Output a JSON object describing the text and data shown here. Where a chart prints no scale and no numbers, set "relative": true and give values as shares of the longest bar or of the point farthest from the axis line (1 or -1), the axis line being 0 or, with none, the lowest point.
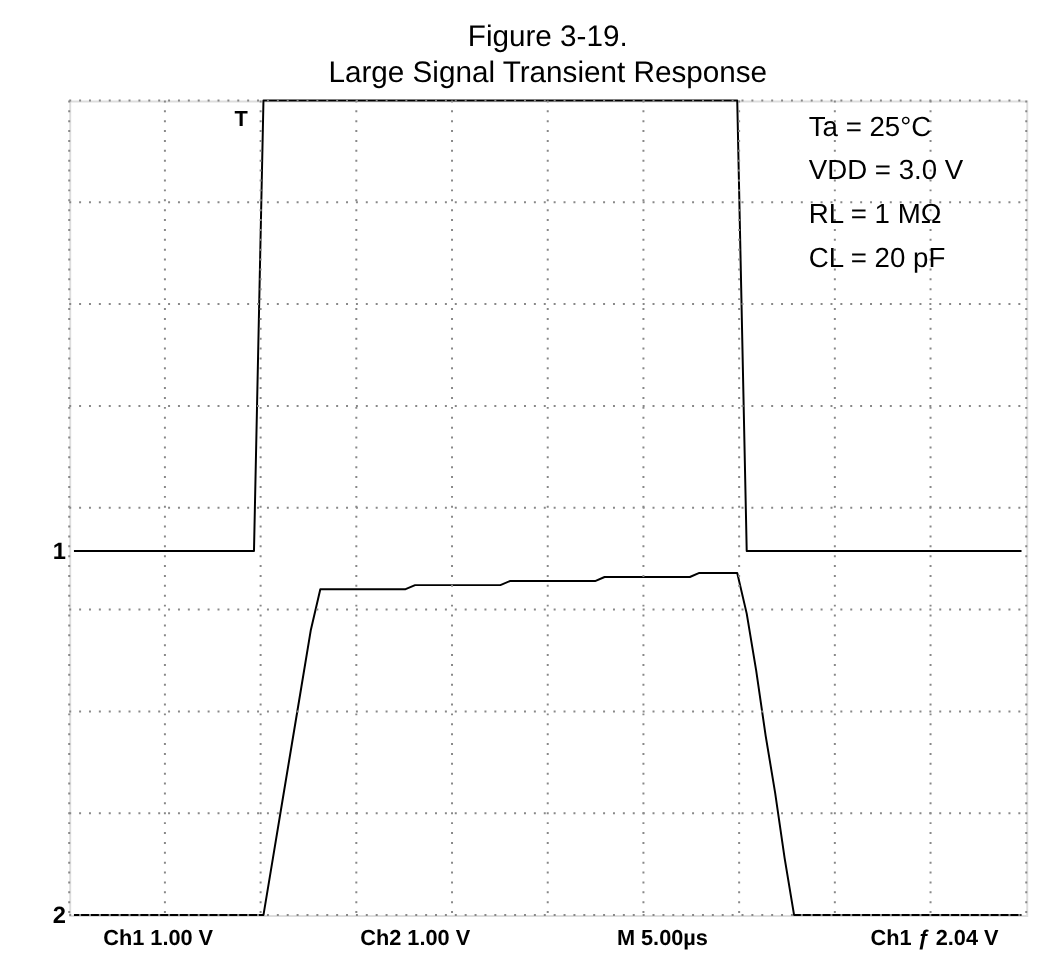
{
  "chart_data": {
    "type": "line",
    "title": "Figure 3-19.",
    "subtitle": "Large Signal Transient Response",
    "relative": true,
    "grid": true,
    "marker": "none",
    "line_style": "solid",
    "categories": [
      null,
      null,
      null,
      null,
      null,
      null,
      null,
      null,
      null,
      null,
      null,
      null,
      null,
      null,
      null,
      null,
      null,
      null,
      null,
      null,
      null,
      null,
      null,
      null,
      null,
      null,
      null,
      null,
      null,
      null,
      null,
      null,
      null,
      null,
      null,
      null,
      null,
      null,
      null,
      null,
      null,
      null,
      null,
      null,
      null,
      null,
      null,
      null,
      null,
      null,
      null,
      null,
      null,
      null,
      null,
      null,
      null,
      null,
      null,
      null,
      null,
      null,
      null,
      null,
      null,
      null,
      null,
      null,
      null,
      null,
      null,
      null,
      null,
      null,
      null,
      null,
      null,
      null,
      null,
      null,
      null,
      null,
      null,
      null,
      null,
      null,
      null,
      null,
      null,
      null,
      null,
      null,
      null,
      null,
      null,
      null,
      null,
      null,
      null,
      null,
      null
    ],
    "series": [
      {
        "name": "1",
        "color": "#000000",
        "values": [
          0.447,
          0.447,
          0.447,
          0.447,
          0.447,
          0.447,
          0.447,
          0.447,
          0.447,
          0.447,
          0.447,
          0.447,
          0.447,
          0.447,
          0.447,
          0.447,
          0.447,
          0.447,
          0.447,
          0.447,
          1,
          1,
          1,
          1,
          1,
          1,
          1,
          1,
          1,
          1,
          1,
          1,
          1,
          1,
          1,
          1,
          1,
          1,
          1,
          1,
          1,
          1,
          1,
          1,
          1,
          1,
          1,
          1,
          1,
          1,
          1,
          1,
          1,
          1,
          1,
          1,
          1,
          1,
          1,
          1,
          1,
          1,
          1,
          1,
          1,
          1,
          1,
          1,
          1,
          1,
          1,
          0.447,
          0.447,
          0.447,
          0.447,
          0.447,
          0.447,
          0.447,
          0.447,
          0.447,
          0.447,
          0.447,
          0.447,
          0.447,
          0.447,
          0.447,
          0.447,
          0.447,
          0.447,
          0.447,
          0.447,
          0.447,
          0.447,
          0.447,
          0.447,
          0.447,
          0.447,
          0.447,
          0.447,
          0.447,
          0.447
        ]
      },
      {
        "name": "2",
        "color": "#000000",
        "values": [
          0,
          0,
          0,
          0,
          0,
          0,
          0,
          0,
          0,
          0,
          0,
          0,
          0,
          0,
          0,
          0,
          0,
          0,
          0,
          0,
          0,
          0.07,
          0.14,
          0.21,
          0.28,
          0.35,
          0.4,
          0.4,
          0.4,
          0.4,
          0.4,
          0.4,
          0.4,
          0.4,
          0.4,
          0.4,
          0.405,
          0.405,
          0.405,
          0.405,
          0.405,
          0.405,
          0.405,
          0.405,
          0.405,
          0.405,
          0.41,
          0.41,
          0.41,
          0.41,
          0.41,
          0.41,
          0.41,
          0.41,
          0.41,
          0.41,
          0.415,
          0.415,
          0.415,
          0.415,
          0.415,
          0.415,
          0.415,
          0.415,
          0.415,
          0.415,
          0.42,
          0.42,
          0.42,
          0.42,
          0.42,
          0.37,
          0.3,
          0.22,
          0.15,
          0.07,
          0,
          0,
          0,
          0,
          0,
          0,
          0,
          0,
          0,
          0,
          0,
          0,
          0,
          0,
          0,
          0,
          0,
          0,
          0,
          0,
          0,
          0,
          0,
          0,
          0
        ]
      }
    ],
    "annotations": [
      "Ta = 25°C",
      "VDD = 3.0 V",
      "RL = 1 MΩ",
      "CL = 20 pF",
      "Ch1 1.00 V",
      "Ch2 1.00 V",
      "M 5.00µs",
      "Ch1 ƒ 2.04 V",
      "T"
    ]
  }
}
